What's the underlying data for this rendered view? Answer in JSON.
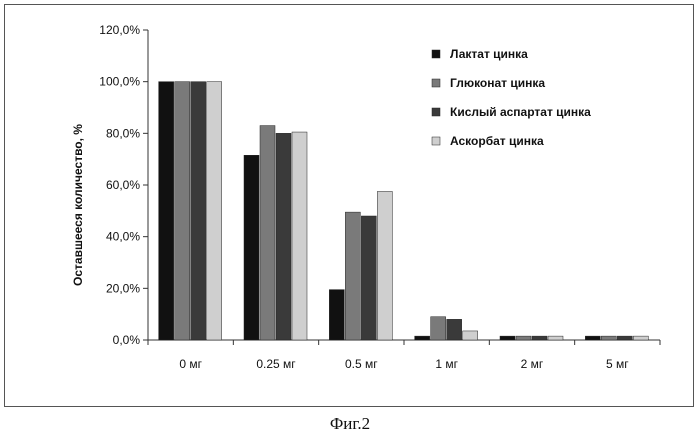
{
  "caption": "Фиг.2",
  "chart_data": {
    "type": "bar",
    "ylabel": "Оставшееся количество, %",
    "xlabel": "",
    "ylim": [
      0,
      120
    ],
    "yticks": [
      0,
      20,
      40,
      60,
      80,
      100,
      120
    ],
    "ytick_labels": [
      "0,0%",
      "20,0%",
      "40,0%",
      "60,0%",
      "80,0%",
      "100,0%",
      "120,0%"
    ],
    "grid": false,
    "legend_position": "top-right",
    "categories": [
      "0 мг",
      "0.25 мг",
      "0.5 мг",
      "1 мг",
      "2 мг",
      "5 мг"
    ],
    "series": [
      {
        "name": "Лактат цинка",
        "color": "#111111",
        "values": [
          100,
          71.5,
          19.5,
          1.5,
          1.5,
          1.5
        ]
      },
      {
        "name": "Глюконат цинка",
        "color": "#7a7a7a",
        "values": [
          100,
          83,
          49.5,
          9,
          1.5,
          1.5
        ]
      },
      {
        "name": "Кислый аспартат цинка",
        "color": "#3a3a3a",
        "values": [
          100,
          80,
          48,
          8,
          1.5,
          1.5
        ]
      },
      {
        "name": "Аскорбат цинка",
        "color": "#cfcfcf",
        "values": [
          100,
          80.5,
          57.5,
          3.5,
          1.5,
          1.5
        ]
      }
    ]
  }
}
